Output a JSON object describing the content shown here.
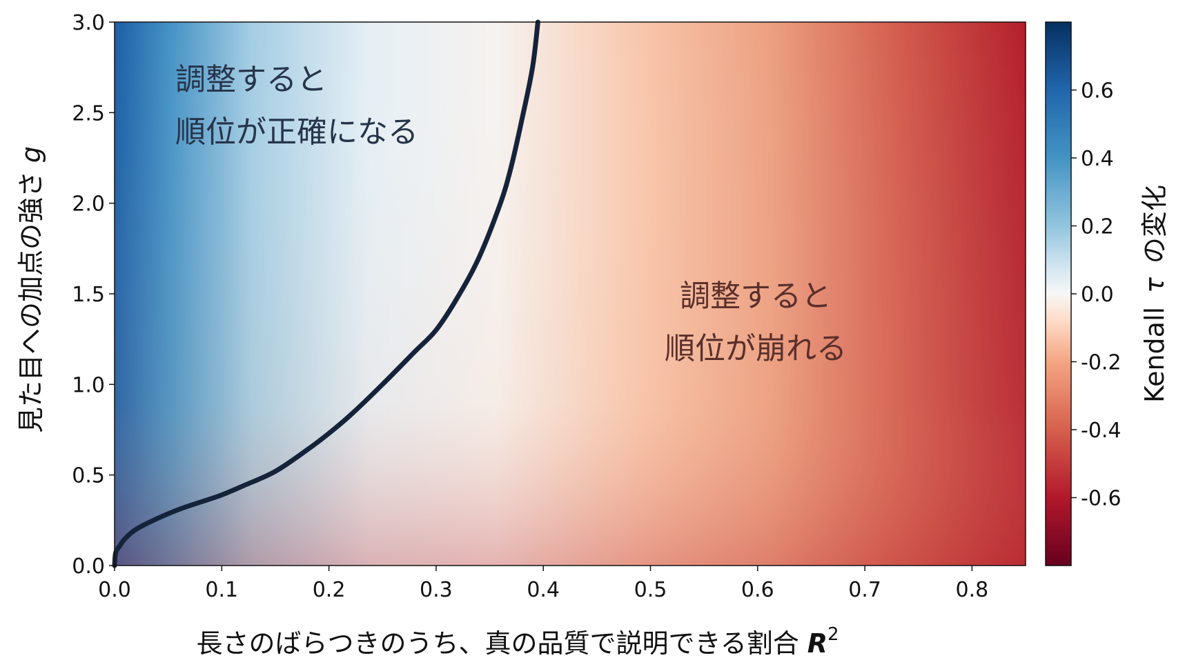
{
  "chart_data": {
    "type": "heatmap",
    "xlabel": "長さのばらつきのうち、真の品質で説明できる割合",
    "xlabel_symbol": "R",
    "xlabel_superscript": "2",
    "ylabel": "見た目への加点の強さ",
    "ylabel_symbol": "g",
    "xlim": [
      0.0,
      0.85
    ],
    "ylim": [
      0.0,
      3.0
    ],
    "x_ticks": [
      {
        "value": 0.0,
        "label": "0.0"
      },
      {
        "value": 0.1,
        "label": "0.1"
      },
      {
        "value": 0.2,
        "label": "0.2"
      },
      {
        "value": 0.3,
        "label": "0.3"
      },
      {
        "value": 0.4,
        "label": "0.4"
      },
      {
        "value": 0.5,
        "label": "0.5"
      },
      {
        "value": 0.6,
        "label": "0.6"
      },
      {
        "value": 0.7,
        "label": "0.7"
      },
      {
        "value": 0.8,
        "label": "0.8"
      }
    ],
    "y_ticks": [
      {
        "value": 0.0,
        "label": "0.0"
      },
      {
        "value": 0.5,
        "label": "0.5"
      },
      {
        "value": 1.0,
        "label": "1.0"
      },
      {
        "value": 1.5,
        "label": "1.5"
      },
      {
        "value": 2.0,
        "label": "2.0"
      },
      {
        "value": 2.5,
        "label": "2.5"
      },
      {
        "value": 3.0,
        "label": "3.0"
      }
    ],
    "colorbar": {
      "label": "Kendall",
      "label_symbol": "τ",
      "label_suffix": "の変化",
      "colormap": "RdBu",
      "range": [
        -0.8,
        0.8
      ],
      "ticks": [
        {
          "value": 0.6,
          "label": "0.6"
        },
        {
          "value": 0.4,
          "label": "0.4"
        },
        {
          "value": 0.2,
          "label": "0.2"
        },
        {
          "value": 0.0,
          "label": "0.0"
        },
        {
          "value": -0.2,
          "label": "-0.2"
        },
        {
          "value": -0.4,
          "label": "-0.4"
        },
        {
          "value": -0.6,
          "label": "-0.6"
        }
      ]
    },
    "boundary_curve": {
      "color": "#15233a",
      "points": [
        [
          0.0,
          0.0
        ],
        [
          0.001,
          0.07
        ],
        [
          0.005,
          0.11
        ],
        [
          0.01,
          0.15
        ],
        [
          0.02,
          0.2
        ],
        [
          0.04,
          0.26
        ],
        [
          0.06,
          0.31
        ],
        [
          0.08,
          0.35
        ],
        [
          0.1,
          0.39
        ],
        [
          0.12,
          0.44
        ],
        [
          0.15,
          0.52
        ],
        [
          0.18,
          0.64
        ],
        [
          0.2,
          0.73
        ],
        [
          0.22,
          0.83
        ],
        [
          0.25,
          1.0
        ],
        [
          0.28,
          1.18
        ],
        [
          0.3,
          1.3
        ],
        [
          0.32,
          1.48
        ],
        [
          0.34,
          1.7
        ],
        [
          0.36,
          2.0
        ],
        [
          0.37,
          2.2
        ],
        [
          0.38,
          2.46
        ],
        [
          0.39,
          2.75
        ],
        [
          0.395,
          3.0
        ]
      ]
    },
    "annotations": [
      {
        "lines": [
          "調整すると",
          "順位が正確になる"
        ],
        "region": "upper-left"
      },
      {
        "lines": [
          "調整すると",
          "順位が崩れる"
        ],
        "region": "lower-right"
      }
    ]
  }
}
